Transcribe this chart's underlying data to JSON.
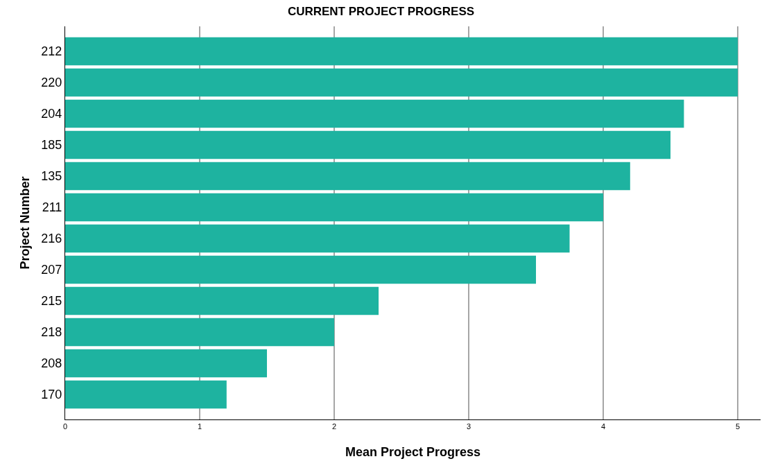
{
  "chart_data": {
    "type": "bar",
    "orientation": "horizontal",
    "title": "CURRENT PROJECT PROGRESS",
    "xlabel": "Mean Project Progress",
    "ylabel": "Project Number",
    "categories": [
      "212",
      "220",
      "204",
      "185",
      "135",
      "211",
      "216",
      "207",
      "215",
      "218",
      "208",
      "170"
    ],
    "values": [
      5,
      5,
      4.6,
      4.5,
      4.2,
      4.0,
      3.75,
      3.5,
      2.33,
      2.0,
      1.5,
      1.2
    ],
    "color": "#1eb3a0",
    "xlim": [
      0,
      5.17
    ],
    "xticks": [
      0,
      1,
      2,
      3,
      4,
      5
    ],
    "grid": "x",
    "legend": false
  }
}
